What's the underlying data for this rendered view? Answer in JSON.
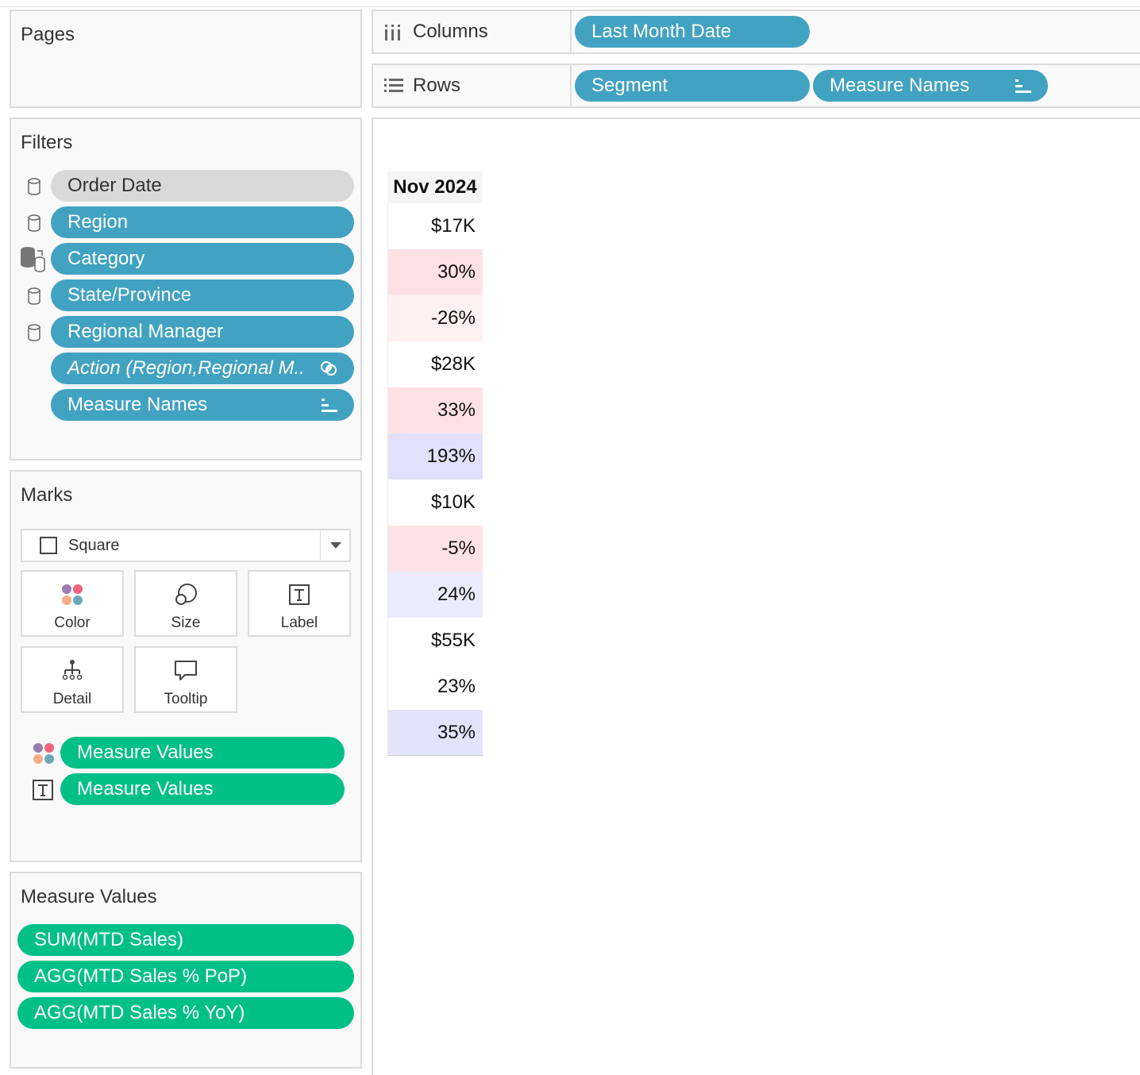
{
  "pages": {
    "title": "Pages"
  },
  "filters": {
    "title": "Filters",
    "items": [
      {
        "label": "Order Date"
      },
      {
        "label": "Region"
      },
      {
        "label": "Category"
      },
      {
        "label": "State/Province"
      },
      {
        "label": "Regional Manager"
      },
      {
        "label": "Action (Region,Regional M.."
      },
      {
        "label": "Measure Names"
      }
    ]
  },
  "marks": {
    "title": "Marks",
    "mark_type": "Square",
    "buttons": {
      "color": "Color",
      "size": "Size",
      "label": "Label",
      "detail": "Detail",
      "tooltip": "Tooltip"
    },
    "fields": [
      {
        "label": "Measure Values"
      },
      {
        "label": "Measure Values"
      }
    ]
  },
  "measure_values": {
    "title": "Measure Values",
    "items": [
      {
        "label": "SUM(MTD Sales)"
      },
      {
        "label": "AGG(MTD Sales % PoP)"
      },
      {
        "label": "AGG(MTD Sales % YoY)"
      }
    ]
  },
  "shelves": {
    "columns": {
      "label": "Columns",
      "pills": [
        {
          "label": "Last Month Date"
        }
      ]
    },
    "rows": {
      "label": "Rows",
      "pills": [
        {
          "label": "Segment"
        },
        {
          "label": "Measure Names"
        }
      ]
    }
  },
  "viz": {
    "header": "Nov 2024",
    "cells": [
      {
        "value": "$17K",
        "color": "#ffffff"
      },
      {
        "value": "30%",
        "color": "#ffe1e4"
      },
      {
        "value": "-26%",
        "color": "#fff1f1"
      },
      {
        "value": "$28K",
        "color": "#ffffff"
      },
      {
        "value": "33%",
        "color": "#ffe1e4"
      },
      {
        "value": "193%",
        "color": "#e2e1fd"
      },
      {
        "value": "$10K",
        "color": "#ffffff"
      },
      {
        "value": "-5%",
        "color": "#ffe2e5"
      },
      {
        "value": "24%",
        "color": "#ecebfb"
      },
      {
        "value": "$55K",
        "color": "#ffffff"
      },
      {
        "value": "23%",
        "color": "#ffffff"
      },
      {
        "value": "35%",
        "color": "#e4e3fc"
      }
    ]
  },
  "colors": {
    "blue_pill": "#42a2c1",
    "green_pill": "#00bf87",
    "gray_pill": "#d9d9d9"
  }
}
